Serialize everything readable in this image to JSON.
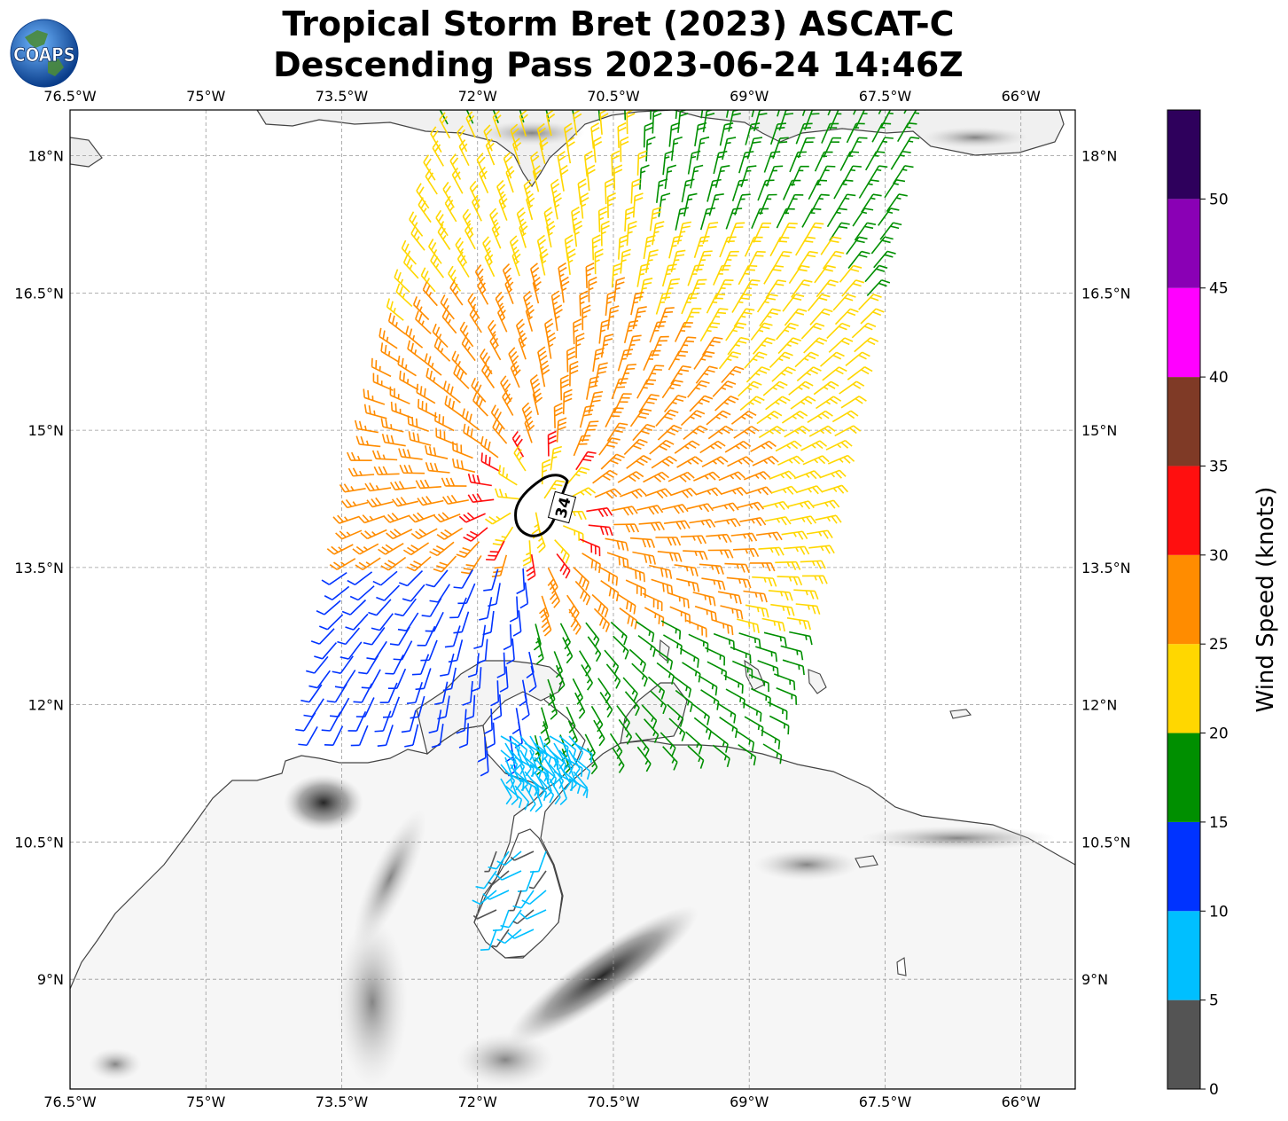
{
  "title": {
    "line1": "Tropical Storm Bret (2023) ASCAT-C",
    "line2": "Descending Pass 2023-06-24 14:46Z"
  },
  "logo": {
    "text": "COAPS",
    "icon": "globe-logo-icon"
  },
  "map": {
    "lon_labels": [
      "76.5°W",
      "75°W",
      "73.5°W",
      "72°W",
      "70.5°W",
      "69°W",
      "67.5°W",
      "66°W"
    ],
    "lat_labels": [
      "18°N",
      "16.5°N",
      "15°N",
      "13.5°N",
      "12°N",
      "10.5°N",
      "9°N"
    ],
    "lon_values": [
      -76.5,
      -75.0,
      -73.5,
      -72.0,
      -70.5,
      -69.0,
      -67.5,
      -66.0
    ],
    "lat_values": [
      18.0,
      16.5,
      15.0,
      13.5,
      12.0,
      10.5,
      9.0
    ],
    "extent": {
      "lon_min": -76.5,
      "lon_max": -65.4,
      "lat_min": 7.8,
      "lat_max": 18.5
    },
    "contour_label": "34",
    "grid": true,
    "land_shading": "grayscale terrain"
  },
  "colorbar": {
    "label": "Wind Speed (knots)",
    "ticks": [
      "0",
      "5",
      "10",
      "15",
      "20",
      "25",
      "30",
      "35",
      "40",
      "45",
      "50"
    ],
    "max": 55,
    "bins": [
      {
        "min": 0,
        "max": 5,
        "color": "#545454"
      },
      {
        "min": 5,
        "max": 10,
        "color": "#00bfff"
      },
      {
        "min": 10,
        "max": 15,
        "color": "#0033ff"
      },
      {
        "min": 15,
        "max": 20,
        "color": "#008f00"
      },
      {
        "min": 20,
        "max": 25,
        "color": "#ffd700"
      },
      {
        "min": 25,
        "max": 30,
        "color": "#ff8c00"
      },
      {
        "min": 30,
        "max": 35,
        "color": "#ff0f0f"
      },
      {
        "min": 35,
        "max": 40,
        "color": "#7f3a26"
      },
      {
        "min": 40,
        "max": 45,
        "color": "#ff00ff"
      },
      {
        "min": 45,
        "max": 50,
        "color": "#8a00b5"
      },
      {
        "min": 50,
        "max": 55,
        "color": "#2e005c"
      }
    ]
  }
}
